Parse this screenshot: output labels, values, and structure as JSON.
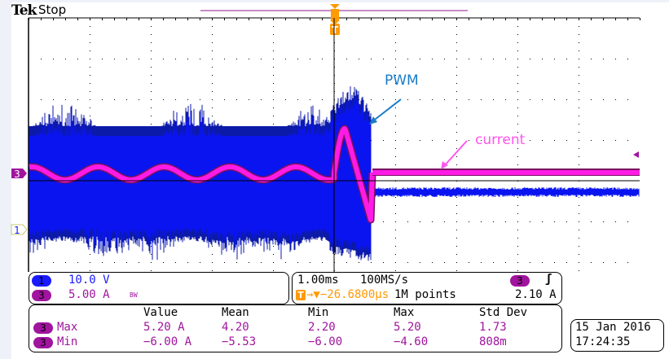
{
  "header": {
    "brand": "Tek",
    "status": "Stop"
  },
  "colors": {
    "ch1": "#0a14f0",
    "ch3": "#ff1ae6",
    "trigger": "#ff9a00",
    "annotation_pwm": "#1a7cc8",
    "annotation_current": "#ff55ee"
  },
  "annotations": {
    "pwm": "PWM",
    "current": "current"
  },
  "markers": {
    "trigger": "T",
    "ch1": "1",
    "ch3": "3"
  },
  "channels": [
    {
      "num": "1",
      "scale": "10.0 V",
      "bw": ""
    },
    {
      "num": "3",
      "scale": "5.00 A",
      "bw": "BW"
    }
  ],
  "timebase": {
    "scale": "1.00ms",
    "sample_rate": "100MS/s",
    "position": "→▼−26.6800µs",
    "record_length": "1M points"
  },
  "trigger": {
    "source": "3",
    "slope": "ʃ",
    "level": "2.10 A"
  },
  "measurements": {
    "headers": [
      "Value",
      "Mean",
      "Min",
      "Max",
      "Std Dev"
    ],
    "rows": [
      {
        "ch": "3",
        "name": "Max",
        "value": "5.20 A",
        "mean": "4.20",
        "min": "2.20",
        "max": "5.20",
        "std": "1.73"
      },
      {
        "ch": "3",
        "name": "Min",
        "value": "−6.00 A",
        "mean": "−5.53",
        "min": "−6.00",
        "max": "−4.60",
        "std": "808m"
      }
    ]
  },
  "datetime": {
    "date": "15 Jan  2016",
    "time": "17:24:35"
  }
}
